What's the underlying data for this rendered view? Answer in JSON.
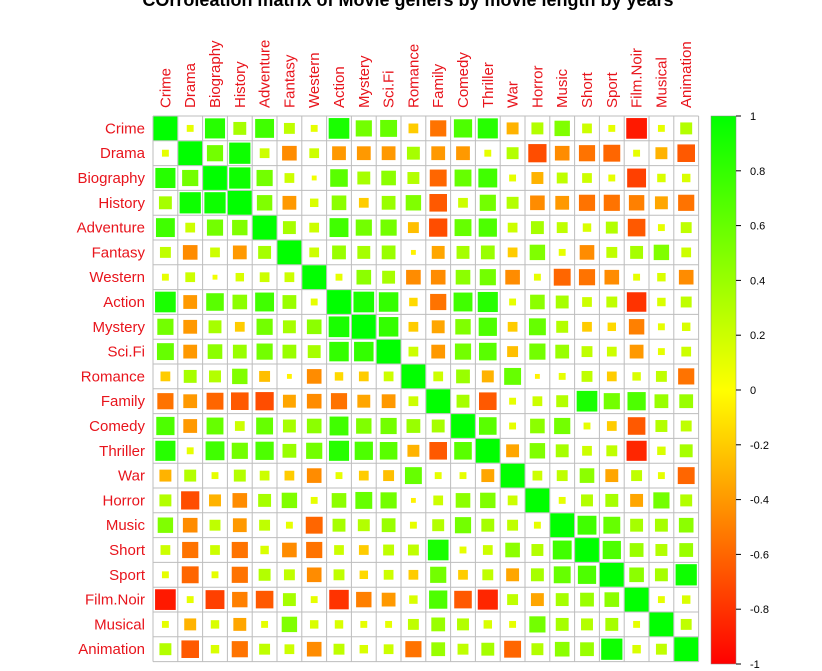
{
  "chart_data": {
    "type": "heatmap",
    "title": "COrroleation matrix of Movie geners by movie length by years",
    "labels": [
      "Crime",
      "Drama",
      "Biography",
      "History",
      "Adventure",
      "Fantasy",
      "Western",
      "Action",
      "Mystery",
      "Sci.Fi",
      "Romance",
      "Family",
      "Comedy",
      "Thriller",
      "War",
      "Horror",
      "Music",
      "Short",
      "Sport",
      "Film.Noir",
      "Musical",
      "Animation"
    ],
    "matrix": [
      [
        1,
        0.1,
        0.85,
        0.35,
        0.75,
        0.25,
        0.1,
        0.9,
        0.55,
        0.6,
        -0.2,
        -0.55,
        0.7,
        0.85,
        -0.3,
        0.3,
        0.5,
        0.2,
        0.1,
        -0.9,
        0.1,
        0.3
      ],
      [
        0.1,
        1,
        0.55,
        0.95,
        0.2,
        -0.45,
        0.2,
        -0.4,
        -0.4,
        -0.4,
        0.35,
        -0.4,
        -0.4,
        0.1,
        0.3,
        -0.7,
        -0.45,
        -0.55,
        -0.6,
        0.1,
        -0.3,
        -0.65
      ],
      [
        0.85,
        0.55,
        1,
        0.95,
        0.55,
        0.2,
        0.05,
        0.65,
        0.35,
        0.45,
        0.3,
        -0.6,
        0.6,
        0.75,
        0.1,
        -0.3,
        0.25,
        0.2,
        0.1,
        -0.75,
        0.15,
        0.15
      ],
      [
        0.35,
        0.95,
        0.95,
        1,
        0.5,
        -0.4,
        0.15,
        0.45,
        -0.2,
        0.4,
        0.5,
        -0.65,
        0.2,
        0.55,
        0.3,
        -0.45,
        -0.4,
        -0.55,
        -0.55,
        -0.5,
        -0.35,
        -0.55
      ],
      [
        0.75,
        0.2,
        0.55,
        0.5,
        1,
        0.35,
        0.2,
        0.75,
        0.55,
        0.55,
        -0.25,
        -0.7,
        0.6,
        0.7,
        0.2,
        0.35,
        0.25,
        0.15,
        0.3,
        -0.65,
        0.1,
        0.25
      ],
      [
        0.25,
        -0.45,
        0.2,
        -0.4,
        0.35,
        1,
        0.2,
        0.4,
        0.35,
        0.4,
        -0.05,
        -0.35,
        0.35,
        0.4,
        -0.2,
        0.5,
        0.1,
        -0.45,
        0.25,
        0.35,
        0.5,
        0.2
      ],
      [
        0.1,
        0.2,
        0.05,
        0.15,
        0.2,
        0.2,
        1,
        0.1,
        0.45,
        0.35,
        -0.45,
        -0.45,
        0.45,
        0.55,
        -0.45,
        0.1,
        -0.6,
        -0.55,
        -0.45,
        0.1,
        0.15,
        -0.45
      ],
      [
        0.9,
        -0.4,
        0.65,
        0.45,
        0.75,
        0.4,
        0.1,
        1,
        0.9,
        0.8,
        -0.15,
        -0.55,
        0.75,
        0.85,
        0.1,
        0.45,
        0.35,
        0.2,
        0.25,
        -0.8,
        0.15,
        0.25
      ],
      [
        0.55,
        -0.4,
        0.35,
        -0.2,
        0.55,
        0.35,
        0.45,
        0.9,
        1,
        0.8,
        -0.2,
        -0.35,
        0.5,
        0.7,
        -0.2,
        0.6,
        0.3,
        -0.2,
        -0.15,
        -0.5,
        0.1,
        0.15
      ],
      [
        0.6,
        -0.4,
        0.45,
        0.4,
        0.55,
        0.4,
        0.35,
        0.8,
        0.8,
        1,
        0.2,
        -0.4,
        0.55,
        0.65,
        -0.25,
        0.55,
        0.4,
        0.25,
        0.2,
        -0.4,
        0.1,
        0.2
      ],
      [
        -0.2,
        0.35,
        0.3,
        0.5,
        -0.25,
        -0.05,
        -0.45,
        -0.15,
        -0.2,
        0.2,
        1,
        0.2,
        0.4,
        -0.3,
        0.6,
        -0.05,
        0.1,
        0.25,
        -0.2,
        0.15,
        0.25,
        -0.55
      ],
      [
        -0.55,
        -0.4,
        -0.6,
        -0.65,
        -0.7,
        -0.35,
        -0.45,
        -0.55,
        -0.35,
        -0.4,
        0.2,
        1,
        0.35,
        -0.65,
        0.1,
        0.2,
        0.3,
        0.9,
        0.55,
        0.7,
        0.4,
        0.4
      ],
      [
        0.7,
        -0.4,
        0.6,
        0.2,
        0.6,
        0.35,
        0.45,
        0.75,
        0.5,
        0.55,
        0.4,
        0.35,
        1,
        0.65,
        0.1,
        0.45,
        0.55,
        0.1,
        -0.2,
        -0.65,
        0.3,
        0.25
      ],
      [
        0.85,
        0.1,
        0.75,
        0.55,
        0.7,
        0.4,
        0.55,
        0.85,
        0.7,
        0.65,
        -0.3,
        -0.65,
        0.65,
        1,
        -0.35,
        0.5,
        0.35,
        0.2,
        0.25,
        -0.85,
        0.15,
        0.35
      ],
      [
        -0.3,
        0.3,
        0.1,
        0.3,
        0.2,
        -0.2,
        -0.45,
        0.1,
        -0.2,
        -0.25,
        0.6,
        0.1,
        0.1,
        -0.35,
        1,
        0.2,
        0.25,
        0.45,
        -0.35,
        0.25,
        0.1,
        -0.6
      ],
      [
        0.3,
        -0.7,
        -0.3,
        -0.45,
        0.35,
        0.5,
        0.1,
        0.45,
        0.6,
        0.55,
        -0.05,
        0.2,
        0.45,
        0.5,
        0.2,
        1,
        0.1,
        0.3,
        0.35,
        -0.35,
        0.55,
        0.3
      ],
      [
        0.5,
        -0.45,
        0.25,
        -0.4,
        0.25,
        0.1,
        -0.6,
        0.35,
        0.3,
        0.4,
        0.1,
        0.3,
        0.55,
        0.35,
        0.25,
        0.1,
        1,
        0.75,
        0.6,
        0.35,
        0.35,
        0.45
      ],
      [
        0.2,
        -0.55,
        0.2,
        -0.55,
        0.15,
        -0.45,
        -0.55,
        0.2,
        -0.2,
        0.25,
        0.25,
        0.9,
        0.1,
        0.2,
        0.45,
        0.3,
        0.75,
        1,
        0.7,
        0.4,
        0.3,
        0.4
      ],
      [
        0.1,
        -0.6,
        0.1,
        -0.55,
        0.3,
        0.25,
        -0.45,
        0.25,
        -0.15,
        0.2,
        -0.2,
        0.55,
        -0.2,
        0.25,
        -0.35,
        0.35,
        0.6,
        0.7,
        1,
        0.45,
        0.35,
        0.95
      ],
      [
        -0.9,
        0.1,
        -0.75,
        -0.5,
        -0.65,
        0.35,
        0.1,
        -0.8,
        -0.5,
        -0.4,
        0.15,
        0.7,
        -0.65,
        -0.85,
        0.25,
        -0.35,
        0.35,
        0.4,
        0.45,
        1,
        0.1,
        0.15
      ],
      [
        0.1,
        -0.3,
        0.15,
        -0.35,
        0.1,
        0.5,
        0.15,
        0.15,
        0.1,
        0.1,
        0.25,
        0.4,
        0.3,
        0.15,
        0.1,
        0.55,
        0.35,
        0.3,
        0.35,
        0.1,
        1,
        0.25
      ],
      [
        0.3,
        -0.65,
        0.15,
        -0.55,
        0.25,
        0.2,
        -0.45,
        0.25,
        0.15,
        0.2,
        -0.55,
        0.4,
        0.25,
        0.35,
        -0.6,
        0.3,
        0.45,
        0.4,
        0.95,
        0.15,
        0.25,
        1
      ]
    ],
    "legend": {
      "placement": "right",
      "range": [
        -1,
        1
      ],
      "ticks": [
        1,
        0.8,
        0.6,
        0.4,
        0.2,
        0,
        -0.2,
        -0.4,
        -0.6,
        -0.8,
        -1
      ],
      "colors": [
        "#ff0000",
        "#ffff00",
        "#00ff00"
      ]
    },
    "grid": true
  }
}
